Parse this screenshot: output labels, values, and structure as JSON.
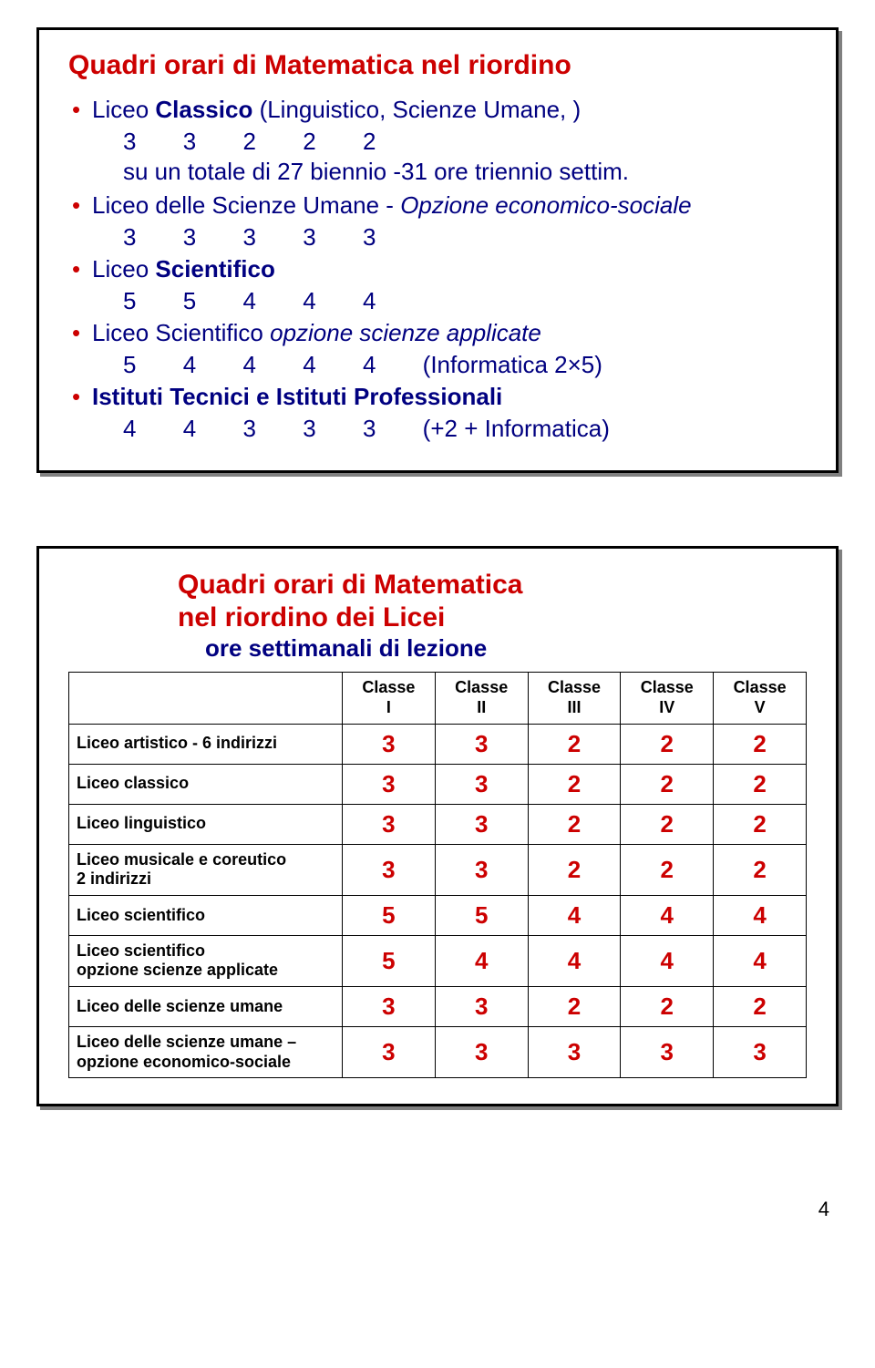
{
  "colors": {
    "accent_red": "#cc0000",
    "text_navy": "#000080",
    "border_black": "#000000",
    "shadow_gray": "#808080",
    "background": "#ffffff"
  },
  "typography": {
    "family": "Arial",
    "title_size_pt": 22,
    "body_size_pt": 19,
    "table_label_size_pt": 13,
    "table_value_size_pt": 19
  },
  "page_number": "4",
  "box1": {
    "title": "Quadri orari di Matematica nel riordino",
    "items": [
      {
        "heading_prefix": "Liceo ",
        "heading_bold": "Classico",
        "heading_suffix": " (Linguistico, Scienze Umane, )",
        "values": [
          "3",
          "3",
          "2",
          "2",
          "2"
        ],
        "note": "su un totale di 27 biennio -31 ore triennio settim."
      },
      {
        "heading_prefix": "Liceo delle Scienze Umane - ",
        "heading_italic": "Opzione economico-sociale",
        "values": [
          "3",
          "3",
          "3",
          "3",
          "3"
        ]
      },
      {
        "heading_prefix": "Liceo ",
        "heading_bold": "Scientifico",
        "values": [
          "5",
          "5",
          "4",
          "4",
          "4"
        ]
      },
      {
        "heading_prefix": "Liceo Scientifico ",
        "heading_italic": "opzione scienze applicate",
        "values": [
          "5",
          "4",
          "4",
          "4",
          "4"
        ],
        "trail": "(Informatica 2×5)"
      },
      {
        "heading_bold_full": "Istituti Tecnici e Istituti Professionali",
        "values": [
          "4",
          "4",
          "3",
          "3",
          "3"
        ],
        "trail": "(+2 + Informatica)"
      }
    ]
  },
  "box2": {
    "title_line1": "Quadri orari di Matematica",
    "title_line2": "nel riordino dei Licei",
    "subtitle": "ore settimanali di lezione",
    "columns": [
      "Classe\nI",
      "Classe\nII",
      "Classe\nIII",
      "Classe\nIV",
      "Classe\nV"
    ],
    "rows": [
      {
        "label": "Liceo artistico - 6 indirizzi",
        "values": [
          "3",
          "3",
          "2",
          "2",
          "2"
        ]
      },
      {
        "label": "Liceo classico",
        "values": [
          "3",
          "3",
          "2",
          "2",
          "2"
        ]
      },
      {
        "label": "Liceo linguistico",
        "values": [
          "3",
          "3",
          "2",
          "2",
          "2"
        ]
      },
      {
        "label": "Liceo musicale e coreutico\n2 indirizzi",
        "values": [
          "3",
          "3",
          "2",
          "2",
          "2"
        ]
      },
      {
        "label": "Liceo scientifico",
        "values": [
          "5",
          "5",
          "4",
          "4",
          "4"
        ]
      },
      {
        "label": "Liceo scientifico\nopzione scienze applicate",
        "values": [
          "5",
          "4",
          "4",
          "4",
          "4"
        ]
      },
      {
        "label": "Liceo delle scienze umane",
        "values": [
          "3",
          "3",
          "2",
          "2",
          "2"
        ]
      },
      {
        "label": "Liceo delle scienze umane –\nopzione economico-sociale",
        "values": [
          "3",
          "3",
          "3",
          "3",
          "3"
        ]
      }
    ]
  }
}
